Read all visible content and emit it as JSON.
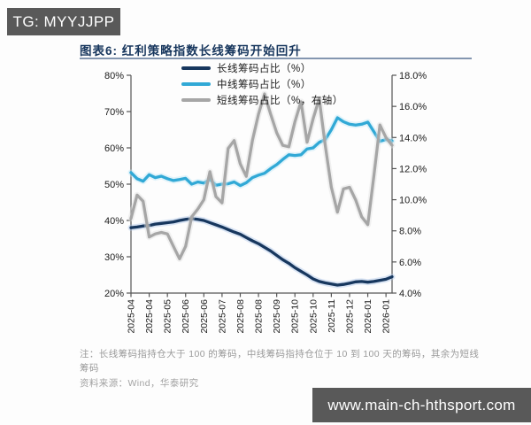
{
  "badge": {
    "text": "TG: MYYJJPP"
  },
  "footer": {
    "note": "注：长线筹码指持仓大于 100 的筹码，中线筹码指持仓位于 10 到 100 天的筹码，其余为短线筹码",
    "source": "资料来源：Wind，华泰研究",
    "url": "www.main-ch-hthsport.com"
  },
  "colors": {
    "long_series": "#17375e",
    "mid_series": "#31a9d6",
    "short_series": "#a6a6a6",
    "title_navy": "#17365d",
    "bar_gray": "#595959"
  },
  "chart_data": {
    "type": "line",
    "title": "图表6:  红利策略指数长线筹码开始回升",
    "x_tick_labels": [
      "2025-04",
      "2025-04",
      "2025-05",
      "2025-06",
      "2025-06",
      "2025-07",
      "2025-08",
      "2025-08",
      "2025-09",
      "2025-10",
      "2025-10",
      "2025-11",
      "2025-12",
      "2026-01",
      "2026-01"
    ],
    "tick_every": 3,
    "left_axis": {
      "min": 20,
      "max": 80,
      "tick_labels": [
        "80%",
        "70%",
        "60%",
        "50%",
        "40%",
        "30%",
        "20%"
      ]
    },
    "right_axis": {
      "min": 4,
      "max": 18,
      "tick_labels": [
        "18.0%",
        "16.0%",
        "14.0%",
        "12.0%",
        "10.0%",
        "8.0%",
        "6.0%",
        "4.0%"
      ]
    },
    "legend_position": "top-center",
    "grid": false,
    "series": [
      {
        "name": "长线筹码占比（%）",
        "axis": "left",
        "color": "#17375e",
        "halo": "#aec6e8",
        "values": [
          38.0,
          38.2,
          38.5,
          38.6,
          39.0,
          39.2,
          39.4,
          39.6,
          40.0,
          40.3,
          40.5,
          40.3,
          40.0,
          39.4,
          38.8,
          38.2,
          37.5,
          36.8,
          36.2,
          35.3,
          34.4,
          33.6,
          32.6,
          31.6,
          30.4,
          29.2,
          28.2,
          27.0,
          26.0,
          25.0,
          23.9,
          23.2,
          22.8,
          22.5,
          22.2,
          22.4,
          22.7,
          23.1,
          23.2,
          23.0,
          23.2,
          23.5,
          23.8,
          24.5
        ]
      },
      {
        "name": "中线筹码占比（%）",
        "axis": "left",
        "color": "#31a9d6",
        "halo": "#bfe7f7",
        "values": [
          53.2,
          51.5,
          50.8,
          52.6,
          51.8,
          52.2,
          51.5,
          51.0,
          51.3,
          51.6,
          50.0,
          50.6,
          50.3,
          51.3,
          49.7,
          50.0,
          50.1,
          50.6,
          49.6,
          50.4,
          51.8,
          52.5,
          53.0,
          54.3,
          55.4,
          56.8,
          58.1,
          57.9,
          58.1,
          59.7,
          60.0,
          61.5,
          62.3,
          65.0,
          68.3,
          67.2,
          66.5,
          66.3,
          66.5,
          67.1,
          64.5,
          61.8,
          62.3,
          61.9
        ]
      },
      {
        "name": "短线筹码占比（%，右轴）",
        "axis": "right",
        "color": "#a6a6a6",
        "halo": "#e0e0e0",
        "values": [
          8.8,
          10.3,
          9.9,
          7.6,
          7.8,
          7.9,
          7.8,
          7.0,
          6.2,
          7.0,
          8.9,
          9.4,
          10.0,
          11.8,
          10.2,
          9.8,
          13.3,
          13.8,
          12.3,
          11.5,
          13.8,
          15.5,
          16.8,
          15.5,
          14.3,
          13.5,
          13.4,
          15.0,
          16.3,
          13.7,
          15.2,
          16.5,
          13.5,
          10.8,
          9.2,
          10.7,
          10.8,
          10.0,
          8.9,
          8.4,
          11.5,
          14.8,
          14.0,
          13.5
        ]
      }
    ]
  }
}
